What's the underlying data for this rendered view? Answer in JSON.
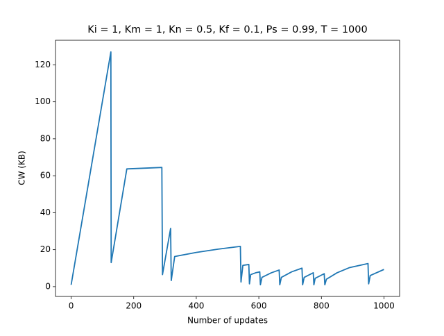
{
  "chart_data": {
    "type": "line",
    "title": "Ki = 1, Km = 1, Kn = 0.5, Kf = 0.1, Ps = 0.99, T = 1000",
    "x_label": "Number of updates",
    "y_label": "CW (KB)",
    "x": [
      0,
      127,
      128,
      178,
      290,
      292,
      318,
      320,
      331,
      400,
      470,
      541,
      543,
      549,
      568,
      570,
      574,
      590,
      603,
      605,
      610,
      640,
      665,
      667,
      672,
      705,
      738,
      740,
      745,
      774,
      776,
      780,
      809,
      811,
      816,
      850,
      890,
      949,
      951,
      956,
      1000
    ],
    "values": [
      1,
      127,
      13,
      63.7,
      64.5,
      6.5,
      31.5,
      3.3,
      16.3,
      18.5,
      20.3,
      21.8,
      2.5,
      11.5,
      12,
      1.5,
      6.5,
      7.5,
      8,
      1,
      5,
      7.5,
      9,
      1,
      5,
      8,
      10,
      1,
      5,
      7.5,
      1,
      4.5,
      7,
      1,
      4,
      7.5,
      10.3,
      12.5,
      1.5,
      6,
      9.3
    ],
    "color": "#1f77b4",
    "xlim": [
      -50,
      1050
    ],
    "xticks": [
      0,
      200,
      400,
      600,
      800,
      1000
    ],
    "ylim": [
      -5.3,
      133.3
    ],
    "yticks": [
      0,
      20,
      40,
      60,
      80,
      100,
      120
    ],
    "grid": false
  }
}
